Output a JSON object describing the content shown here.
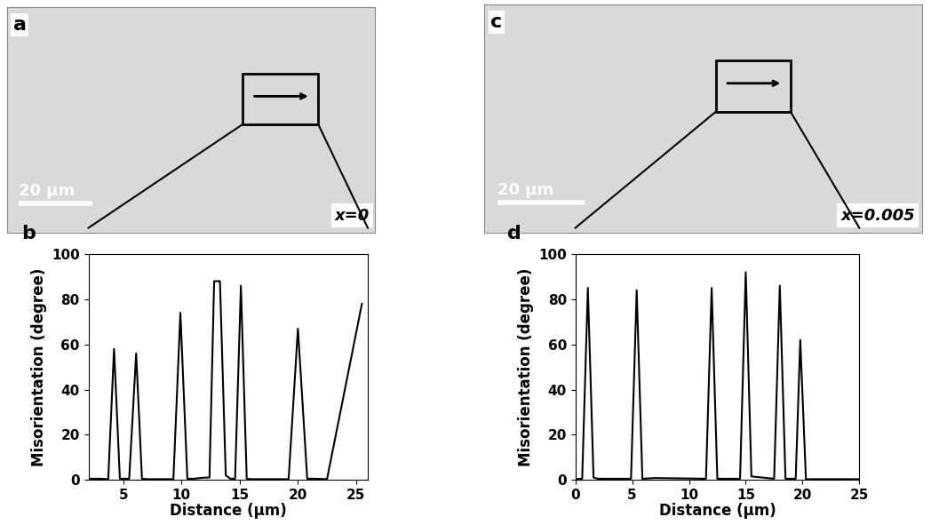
{
  "images": [
    {
      "label": "a",
      "scale_bar": "20 μm",
      "composition": "x=0"
    },
    {
      "label": "c",
      "scale_bar": "20 μm",
      "composition": "x=0.005"
    }
  ],
  "chart_data": [
    {
      "type": "line",
      "title": "b",
      "x_label": "Distance (μm)",
      "y_label": "Misorientation (degree)",
      "color": "#000000",
      "x": [
        2,
        3,
        3.7,
        4.2,
        4.7,
        5.5,
        6.1,
        6.6,
        7,
        9.3,
        9.9,
        10.5,
        11,
        12,
        12.4,
        12.8,
        13.3,
        13.8,
        14.2,
        14.6,
        15.1,
        15.6,
        16,
        17,
        19.2,
        20,
        20.8,
        21.5,
        22.5,
        25.5
      ],
      "values": [
        0.5,
        0.5,
        0.3,
        58,
        0.5,
        0.5,
        56,
        0.5,
        0.3,
        0.3,
        74,
        0.5,
        0.5,
        1,
        1,
        88,
        88,
        2,
        0.5,
        0.5,
        86,
        0.5,
        0.3,
        0.3,
        0.3,
        67,
        0.5,
        0.5,
        0.3,
        78
      ],
      "xlim": [
        2,
        26
      ],
      "xticks": [
        5,
        10,
        15,
        20,
        25
      ],
      "ylim": [
        0,
        100
      ],
      "yticks": [
        0,
        20,
        40,
        60,
        80,
        100
      ]
    },
    {
      "type": "line",
      "title": "d",
      "x_label": "Distance (μm)",
      "y_label": "Misorientation (degree)",
      "color": "#000000",
      "x": [
        0,
        0.6,
        1.1,
        1.6,
        2,
        4.9,
        5.4,
        5.9,
        7,
        11.5,
        12,
        12.5,
        14.5,
        15,
        15.5,
        17.5,
        18,
        18.5,
        19.4,
        19.8,
        20.3,
        25
      ],
      "values": [
        0.3,
        0.5,
        85,
        1,
        0.5,
        0.5,
        84,
        0.5,
        0.8,
        0.5,
        85,
        0.5,
        0.5,
        92,
        1.5,
        0.5,
        86,
        0.5,
        0.5,
        62,
        0.3,
        0.3
      ],
      "xlim": [
        0,
        25
      ],
      "xticks": [
        0,
        5,
        10,
        15,
        20,
        25
      ],
      "ylim": [
        0,
        100
      ],
      "yticks": [
        0,
        20,
        40,
        60,
        80,
        100
      ]
    }
  ]
}
